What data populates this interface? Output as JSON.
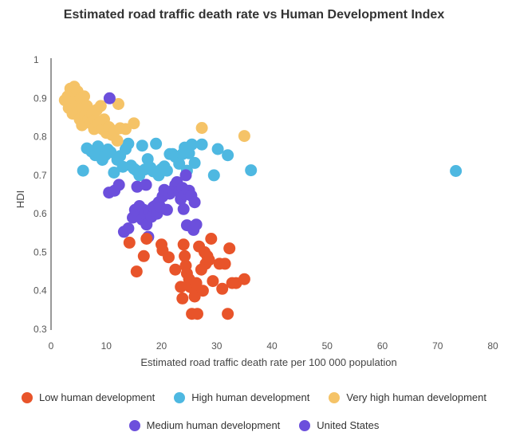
{
  "chart_data": {
    "type": "scatter",
    "title": "Estimated road traffic death rate vs Human Development Index",
    "xlabel": "Estimated road traffic death rate per 100 000 population",
    "ylabel": "HDI",
    "xlim": [
      0,
      80
    ],
    "ylim": [
      0.3,
      1
    ],
    "xticks": [
      "0",
      "10",
      "20",
      "30",
      "40",
      "50",
      "60",
      "70",
      "80"
    ],
    "yticks": [
      "0.3",
      "0.4",
      "0.5",
      "0.6",
      "0.7",
      "0.8",
      "0.9",
      "1"
    ],
    "grid": false,
    "legend_position": "bottom",
    "series": [
      {
        "name": "Low human development",
        "color": "#e8542a",
        "points": [
          [
            14.2,
            0.525
          ],
          [
            15.5,
            0.45
          ],
          [
            16.8,
            0.49
          ],
          [
            17.3,
            0.535
          ],
          [
            20,
            0.52
          ],
          [
            20.2,
            0.505
          ],
          [
            21.3,
            0.487
          ],
          [
            22.5,
            0.455
          ],
          [
            23.5,
            0.41
          ],
          [
            23.8,
            0.38
          ],
          [
            24,
            0.52
          ],
          [
            24.2,
            0.49
          ],
          [
            24.4,
            0.465
          ],
          [
            24.6,
            0.445
          ],
          [
            25,
            0.43
          ],
          [
            25.2,
            0.41
          ],
          [
            25.5,
            0.34
          ],
          [
            25.8,
            0.405
          ],
          [
            26,
            0.385
          ],
          [
            26.3,
            0.42
          ],
          [
            26.5,
            0.34
          ],
          [
            26.8,
            0.515
          ],
          [
            27.2,
            0.455
          ],
          [
            27.5,
            0.4
          ],
          [
            27.8,
            0.5
          ],
          [
            28,
            0.47
          ],
          [
            28.3,
            0.49
          ],
          [
            28.6,
            0.48
          ],
          [
            29,
            0.535
          ],
          [
            29.3,
            0.425
          ],
          [
            30.5,
            0.47
          ],
          [
            31,
            0.405
          ],
          [
            31.5,
            0.47
          ],
          [
            32,
            0.34
          ],
          [
            32.3,
            0.51
          ],
          [
            32.8,
            0.42
          ],
          [
            33.5,
            0.42
          ],
          [
            35,
            0.43
          ]
        ]
      },
      {
        "name": "High human development",
        "color": "#4eb8e1",
        "points": [
          [
            5.8,
            0.712
          ],
          [
            6.5,
            0.77
          ],
          [
            7.3,
            0.762
          ],
          [
            8,
            0.752
          ],
          [
            8.5,
            0.775
          ],
          [
            9,
            0.76
          ],
          [
            9.3,
            0.74
          ],
          [
            9.8,
            0.752
          ],
          [
            10.3,
            0.767
          ],
          [
            10.8,
            0.76
          ],
          [
            11.4,
            0.707
          ],
          [
            12,
            0.74
          ],
          [
            12.5,
            0.75
          ],
          [
            13,
            0.722
          ],
          [
            13.5,
            0.768
          ],
          [
            14,
            0.782
          ],
          [
            14.5,
            0.725
          ],
          [
            15,
            0.717
          ],
          [
            15.5,
            0.712
          ],
          [
            16,
            0.7
          ],
          [
            16.5,
            0.777
          ],
          [
            17,
            0.715
          ],
          [
            17.5,
            0.742
          ],
          [
            18,
            0.72
          ],
          [
            18.5,
            0.71
          ],
          [
            19,
            0.782
          ],
          [
            19.5,
            0.7
          ],
          [
            20,
            0.716
          ],
          [
            20.5,
            0.723
          ],
          [
            21,
            0.712
          ],
          [
            21.5,
            0.755
          ],
          [
            22,
            0.755
          ],
          [
            22.5,
            0.748
          ],
          [
            23.2,
            0.73
          ],
          [
            23.8,
            0.755
          ],
          [
            24.2,
            0.772
          ],
          [
            24.6,
            0.712
          ],
          [
            25,
            0.757
          ],
          [
            25.5,
            0.78
          ],
          [
            26,
            0.732
          ],
          [
            27.3,
            0.78
          ],
          [
            29.5,
            0.7
          ],
          [
            30.2,
            0.768
          ],
          [
            32,
            0.752
          ],
          [
            36.2,
            0.713
          ],
          [
            73.3,
            0.711
          ]
        ]
      },
      {
        "name": "Very high human development",
        "color": "#f5c367",
        "points": [
          [
            2.5,
            0.895
          ],
          [
            3,
            0.905
          ],
          [
            3.2,
            0.875
          ],
          [
            3.5,
            0.925
          ],
          [
            3.7,
            0.89
          ],
          [
            3.9,
            0.86
          ],
          [
            4,
            0.91
          ],
          [
            4.2,
            0.93
          ],
          [
            4.4,
            0.895
          ],
          [
            4.6,
            0.88
          ],
          [
            4.8,
            0.918
          ],
          [
            5,
            0.865
          ],
          [
            5.2,
            0.845
          ],
          [
            5.4,
            0.9
          ],
          [
            5.6,
            0.83
          ],
          [
            5.8,
            0.875
          ],
          [
            6,
            0.905
          ],
          [
            6.2,
            0.855
          ],
          [
            6.5,
            0.88
          ],
          [
            6.8,
            0.845
          ],
          [
            7,
            0.865
          ],
          [
            7.2,
            0.835
          ],
          [
            7.5,
            0.86
          ],
          [
            7.8,
            0.82
          ],
          [
            8,
            0.845
          ],
          [
            8.3,
            0.87
          ],
          [
            8.6,
            0.835
          ],
          [
            9,
            0.88
          ],
          [
            9.3,
            0.82
          ],
          [
            9.6,
            0.845
          ],
          [
            10,
            0.81
          ],
          [
            10.5,
            0.825
          ],
          [
            11,
            0.805
          ],
          [
            11.5,
            0.815
          ],
          [
            12,
            0.79
          ],
          [
            12.5,
            0.822
          ],
          [
            13.5,
            0.82
          ],
          [
            15,
            0.835
          ],
          [
            12.2,
            0.885
          ],
          [
            27.3,
            0.823
          ],
          [
            35,
            0.802
          ]
        ]
      },
      {
        "name": "Medium human development",
        "color": "#6c4fdc",
        "points": [
          [
            10.5,
            0.655
          ],
          [
            11.5,
            0.66
          ],
          [
            12.3,
            0.675
          ],
          [
            13.2,
            0.553
          ],
          [
            14,
            0.562
          ],
          [
            14.8,
            0.59
          ],
          [
            15.2,
            0.61
          ],
          [
            15.6,
            0.67
          ],
          [
            16,
            0.62
          ],
          [
            16.3,
            0.6
          ],
          [
            16.5,
            0.585
          ],
          [
            16.8,
            0.61
          ],
          [
            17,
            0.6
          ],
          [
            17.3,
            0.572
          ],
          [
            17.6,
            0.54
          ],
          [
            17.9,
            0.605
          ],
          [
            18.2,
            0.592
          ],
          [
            18.5,
            0.617
          ],
          [
            18.8,
            0.62
          ],
          [
            19.2,
            0.6
          ],
          [
            19.5,
            0.63
          ],
          [
            19.8,
            0.617
          ],
          [
            20.2,
            0.645
          ],
          [
            20.5,
            0.662
          ],
          [
            21,
            0.61
          ],
          [
            21.5,
            0.652
          ],
          [
            22,
            0.66
          ],
          [
            22.5,
            0.675
          ],
          [
            22.8,
            0.682
          ],
          [
            23.2,
            0.657
          ],
          [
            23.5,
            0.638
          ],
          [
            23.8,
            0.667
          ],
          [
            24,
            0.612
          ],
          [
            24.3,
            0.65
          ],
          [
            24.6,
            0.57
          ],
          [
            25,
            0.66
          ],
          [
            25.4,
            0.647
          ],
          [
            25.8,
            0.558
          ],
          [
            26,
            0.63
          ],
          [
            26.3,
            0.572
          ],
          [
            17.2,
            0.675
          ],
          [
            24.4,
            0.7
          ]
        ]
      },
      {
        "name": "United States",
        "color": "#6c4fdc",
        "points": [
          [
            10.6,
            0.9
          ]
        ]
      }
    ]
  }
}
